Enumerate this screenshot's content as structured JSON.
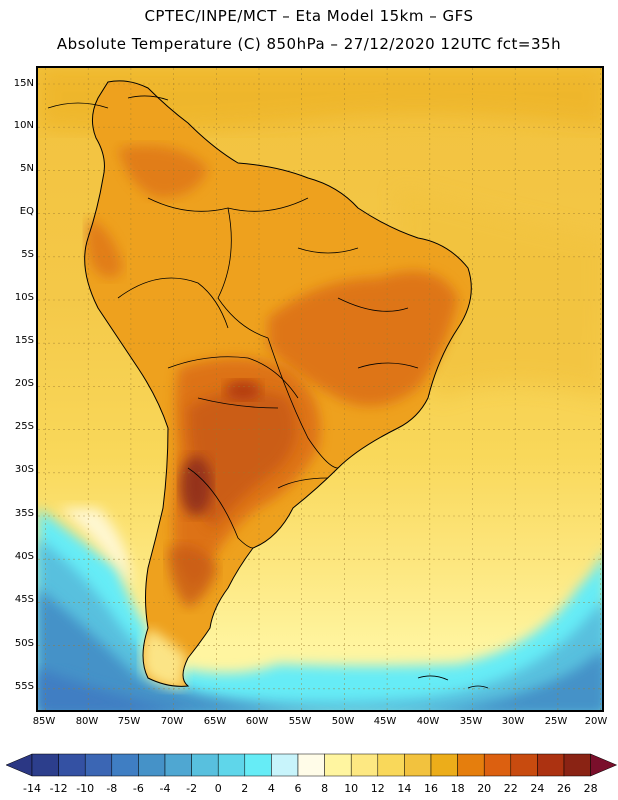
{
  "title": {
    "line1": "CPTEC/INPE/MCT –  Eta Model 15km – GFS",
    "line2": "Absolute Temperature (C) 850hPa – 27/12/2020 12UTC fct=35h"
  },
  "axes": {
    "lat_labels": [
      "15N",
      "10N",
      "5N",
      "EQ",
      "5S",
      "10S",
      "15S",
      "20S",
      "25S",
      "30S",
      "35S",
      "40S",
      "45S",
      "50S",
      "55S"
    ],
    "lon_labels": [
      "85W",
      "80W",
      "75W",
      "70W",
      "65W",
      "60W",
      "55W",
      "50W",
      "45W",
      "40W",
      "35W",
      "30W",
      "25W",
      "20W"
    ]
  },
  "legend": {
    "unit": "C",
    "labels": [
      "-14",
      "-12",
      "-10",
      "-8",
      "-6",
      "-4",
      "-2",
      "0",
      "2",
      "4",
      "6",
      "8",
      "10",
      "12",
      "14",
      "16",
      "18",
      "20",
      "22",
      "24",
      "26",
      "28"
    ],
    "colors": [
      "#2c3e8c",
      "#3451a3",
      "#3b66b4",
      "#3f7ec3",
      "#4592c8",
      "#4fa7d2",
      "#58c0de",
      "#5fd6ea",
      "#66ecf6",
      "#c8f4fb",
      "#fffce8",
      "#fff5a0",
      "#fde882",
      "#f9d85a",
      "#f2c23e",
      "#ecad1a",
      "#e57e0d",
      "#dc6010",
      "#c84b0f",
      "#ac3211",
      "#8a2314"
    ],
    "tri_low": "#2b3784",
    "tri_high": "#7a0f2b"
  },
  "colors": {
    "ocean_warm": "#f5c73f",
    "land_base": "#eea11e",
    "land_hot": "#dc6e18",
    "land_hotter": "#c85a17",
    "hotspot": "#8b2a1a",
    "cool_south": "#5fd6ea",
    "cold_south": "#3f7ec3"
  }
}
